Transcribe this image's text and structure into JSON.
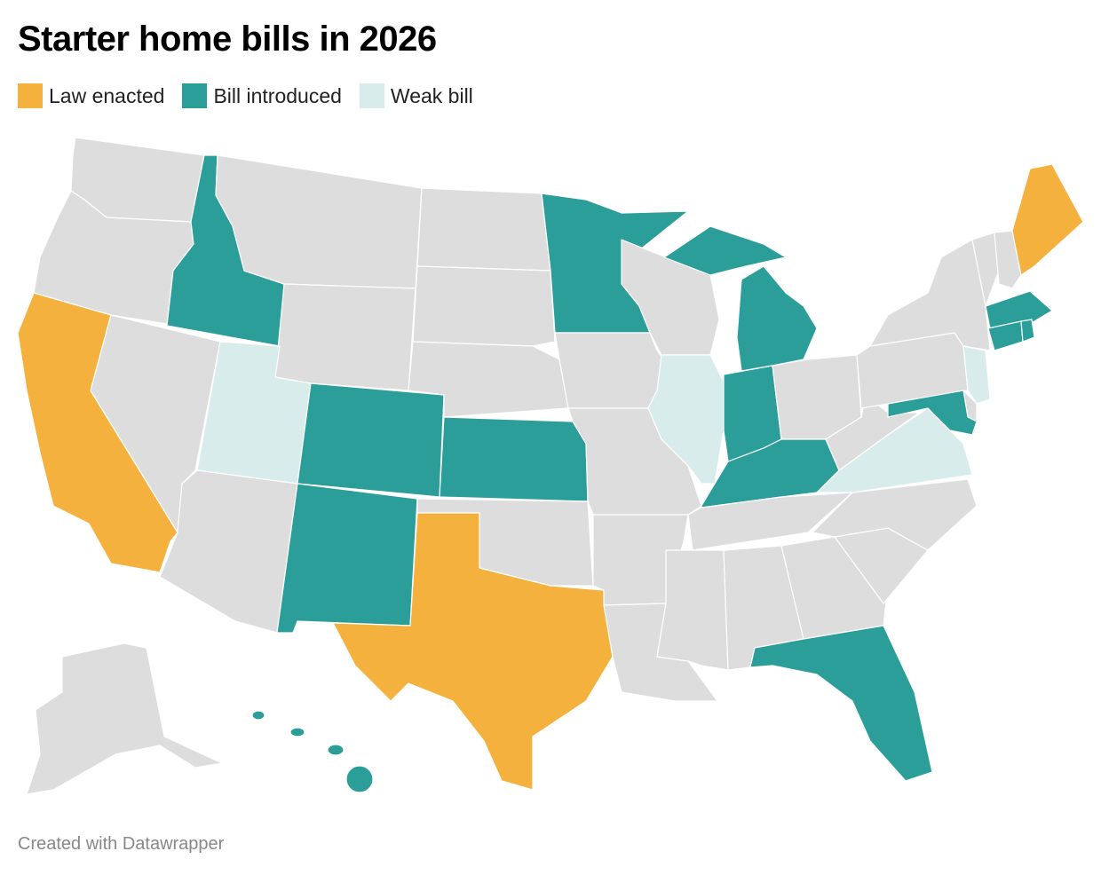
{
  "title": "Starter home bills in 2026",
  "legend": [
    {
      "label": "Law enacted",
      "color": "#f5b13d"
    },
    {
      "label": "Bill introduced",
      "color": "#2b9e99"
    },
    {
      "label": "Weak bill",
      "color": "#d8edeb"
    }
  ],
  "no_data_color": "#dddddd",
  "states": {
    "WA": "none",
    "OR": "none",
    "CA": "law",
    "ID": "bill",
    "NV": "none",
    "MT": "none",
    "WY": "none",
    "UT": "weak",
    "AZ": "none",
    "CO": "bill",
    "NM": "bill",
    "ND": "none",
    "SD": "none",
    "NE": "none",
    "KS": "bill",
    "OK": "none",
    "TX": "law",
    "MN": "bill",
    "IA": "none",
    "MO": "none",
    "AR": "none",
    "LA": "none",
    "WI": "none",
    "IL": "weak",
    "MI_UP": "bill",
    "MI": "bill",
    "IN": "bill",
    "OH": "none",
    "KY": "bill",
    "TN": "none",
    "MS": "none",
    "AL": "none",
    "GA": "none",
    "FL": "bill",
    "SC": "none",
    "NC": "none",
    "VA": "weak",
    "WV": "none",
    "PA": "none",
    "NY": "none",
    "NJ": "weak",
    "DE": "none",
    "MD": "bill",
    "VT": "none",
    "NH": "none",
    "ME": "law",
    "MA": "bill",
    "CT": "bill",
    "RI": "bill",
    "AK": "none",
    "HI": "bill"
  },
  "footer": "Created with Datawrapper"
}
